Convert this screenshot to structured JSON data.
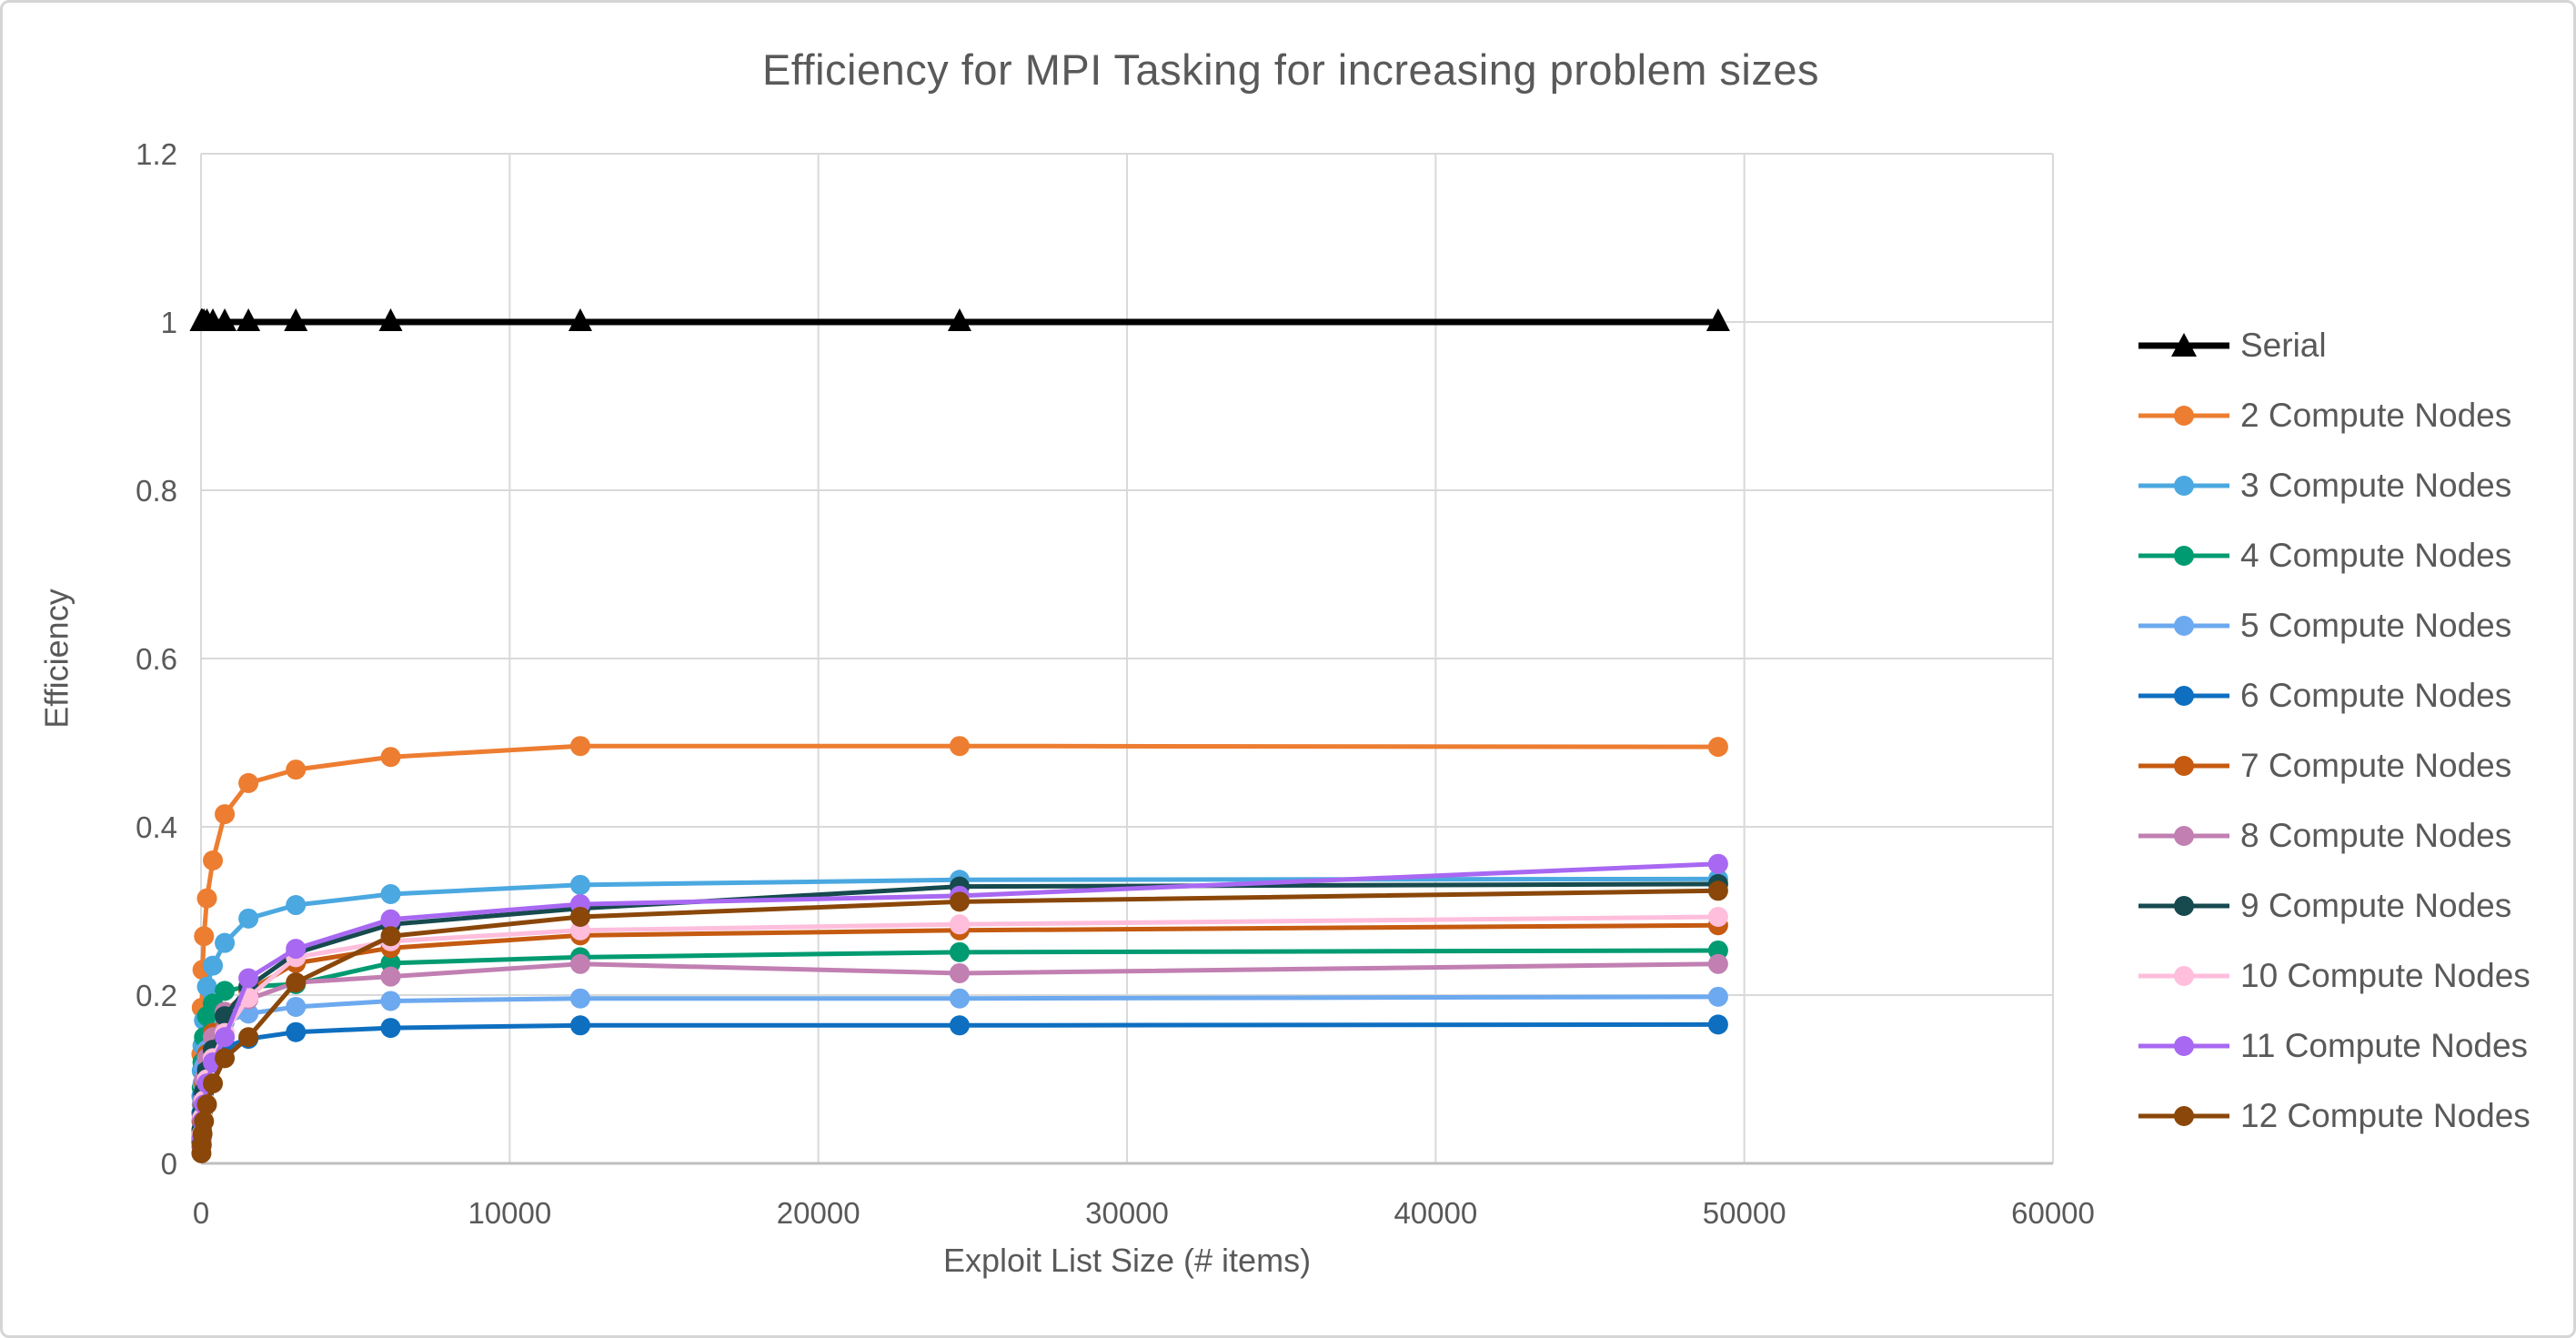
{
  "style": {
    "background": "#FFFFFF",
    "text_color": "#595959",
    "gridline_color": "#D9D9D9",
    "axis_line_color": "#BFBFBF"
  },
  "chart_data": {
    "type": "line",
    "title": "Efficiency for MPI Tasking for increasing problem sizes",
    "xlabel": "Exploit List Size (# items)",
    "ylabel": "Efficiency",
    "xlim": [
      0,
      60000
    ],
    "ylim": [
      0,
      1.2
    ],
    "grid": true,
    "legend_position": "right",
    "x_tick_values": [
      0,
      10000,
      20000,
      30000,
      40000,
      50000,
      60000
    ],
    "x_tick_labels": [
      "0",
      "10000",
      "20000",
      "30000",
      "40000",
      "50000",
      "60000"
    ],
    "y_tick_values": [
      0,
      0.2,
      0.4,
      0.6,
      0.8,
      1,
      1.2
    ],
    "y_tick_labels": [
      "0",
      "0.2",
      "0.4",
      "0.6",
      "0.8",
      "1",
      "1.2"
    ],
    "x": [
      12,
      24,
      48,
      96,
      192,
      384,
      768,
      1536,
      3072,
      6144,
      12288,
      24576,
      49152
    ],
    "series": [
      {
        "name": "Serial",
        "color": "#000000",
        "marker": "triangle",
        "values": [
          1,
          1,
          1,
          1,
          1,
          1,
          1,
          1,
          1,
          1,
          1,
          1,
          1
        ]
      },
      {
        "name": "2 Compute Nodes",
        "color": "#ED7D31",
        "marker": "circle",
        "values": [
          0.13,
          0.185,
          0.23,
          0.27,
          0.315,
          0.36,
          0.415,
          0.452,
          0.468,
          0.483,
          0.496,
          0.496,
          0.495
        ]
      },
      {
        "name": "3 Compute Nodes",
        "color": "#4BA8E0",
        "marker": "circle",
        "values": [
          0.08,
          0.11,
          0.14,
          0.17,
          0.21,
          0.235,
          0.262,
          0.291,
          0.307,
          0.32,
          0.331,
          0.337,
          0.338
        ]
      },
      {
        "name": "4 Compute Nodes",
        "color": "#009B71",
        "marker": "circle",
        "values": [
          0.06,
          0.09,
          0.12,
          0.15,
          0.175,
          0.19,
          0.205,
          0.21,
          0.213,
          0.238,
          0.245,
          0.251,
          0.253
        ]
      },
      {
        "name": "5 Compute Nodes",
        "color": "#6CA9EF",
        "marker": "circle",
        "values": [
          0.05,
          0.07,
          0.095,
          0.115,
          0.135,
          0.155,
          0.168,
          0.178,
          0.186,
          0.193,
          0.196,
          0.196,
          0.198
        ]
      },
      {
        "name": "6 Compute Nodes",
        "color": "#0E6FC0",
        "marker": "circle",
        "values": [
          0.04,
          0.06,
          0.08,
          0.098,
          0.112,
          0.127,
          0.138,
          0.148,
          0.156,
          0.161,
          0.164,
          0.164,
          0.165
        ]
      },
      {
        "name": "7 Compute Nodes",
        "color": "#C55A11",
        "marker": "circle",
        "values": [
          0.03,
          0.05,
          0.07,
          0.095,
          0.13,
          0.155,
          0.18,
          0.205,
          0.238,
          0.256,
          0.271,
          0.277,
          0.283
        ]
      },
      {
        "name": "8 Compute Nodes",
        "color": "#C17FB2",
        "marker": "circle",
        "values": [
          0.035,
          0.055,
          0.075,
          0.1,
          0.125,
          0.15,
          0.18,
          0.195,
          0.215,
          0.222,
          0.237,
          0.226,
          0.237
        ]
      },
      {
        "name": "9 Compute Nodes",
        "color": "#164A4F",
        "marker": "circle",
        "values": [
          0.025,
          0.04,
          0.06,
          0.085,
          0.11,
          0.135,
          0.175,
          0.21,
          0.25,
          0.284,
          0.303,
          0.329,
          0.332
        ]
      },
      {
        "name": "10 Compute Nodes",
        "color": "#FFBEDC",
        "marker": "circle",
        "values": [
          0.02,
          0.035,
          0.055,
          0.075,
          0.1,
          0.125,
          0.155,
          0.197,
          0.245,
          0.264,
          0.277,
          0.284,
          0.293
        ]
      },
      {
        "name": "11 Compute Nodes",
        "color": "#A868F2",
        "marker": "circle",
        "values": [
          0.02,
          0.03,
          0.05,
          0.07,
          0.095,
          0.12,
          0.15,
          0.22,
          0.255,
          0.29,
          0.308,
          0.318,
          0.356
        ]
      },
      {
        "name": "12 Compute Nodes",
        "color": "#8A4709",
        "marker": "circle",
        "values": [
          0.012,
          0.022,
          0.035,
          0.05,
          0.07,
          0.095,
          0.125,
          0.15,
          0.215,
          0.27,
          0.293,
          0.311,
          0.324
        ]
      }
    ]
  }
}
